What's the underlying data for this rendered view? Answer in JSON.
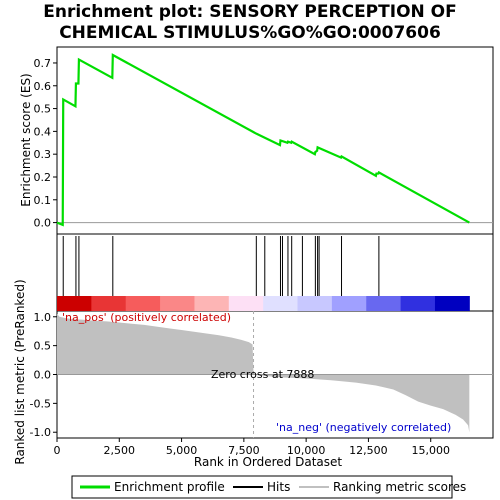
{
  "title_line1": "Enrichment plot: SENSORY PERCEPTION OF",
  "title_line2": "CHEMICAL STIMULUS%GO%GO:0007606",
  "colors": {
    "es_line": "#00dd00",
    "hits": "#000000",
    "metric_fill": "#c0c0c0",
    "pos_label": "#cc0000",
    "neg_label": "#0000cc"
  },
  "chart_data": [
    {
      "type": "line",
      "name": "enrichment-profile",
      "ylabel": "Enrichment score (ES)",
      "xlim": [
        0,
        17500
      ],
      "ylim": [
        -0.05,
        0.77
      ],
      "yticks": [
        0.0,
        0.1,
        0.2,
        0.3,
        0.4,
        0.5,
        0.6,
        0.7
      ],
      "ytick_labels": [
        "0.0",
        "0.1",
        "0.2",
        "0.3",
        "0.4",
        "0.5",
        "0.6",
        "0.7"
      ],
      "x": [
        0,
        230,
        250,
        740,
        760,
        860,
        880,
        2220,
        2240,
        8000,
        8950,
        8970,
        9250,
        9270,
        9400,
        9420,
        10350,
        10370,
        10440,
        10460,
        11400,
        11420,
        12800,
        12820,
        12900,
        12920,
        16550
      ],
      "y": [
        0.0,
        -0.01,
        0.54,
        0.51,
        0.61,
        0.61,
        0.715,
        0.635,
        0.735,
        0.39,
        0.34,
        0.36,
        0.35,
        0.355,
        0.35,
        0.355,
        0.3,
        0.31,
        0.315,
        0.33,
        0.285,
        0.29,
        0.205,
        0.215,
        0.215,
        0.22,
        0.0
      ]
    },
    {
      "type": "bar",
      "name": "hits",
      "x": [
        250,
        760,
        880,
        2240,
        8000,
        8340,
        8970,
        9050,
        9270,
        9420,
        9850,
        10370,
        10460,
        10520,
        11420,
        12920
      ]
    },
    {
      "type": "area",
      "name": "ranked-list-metric",
      "xlabel": "Rank in Ordered Dataset",
      "ylabel": "Ranked list metric (PreRanked)",
      "xlim": [
        0,
        17500
      ],
      "ylim": [
        -1.1,
        1.1
      ],
      "xticks": [
        0,
        2500,
        5000,
        7500,
        10000,
        12500,
        15000
      ],
      "xtick_labels": [
        "0",
        "2,500",
        "5,000",
        "7,500",
        "10,000",
        "12,500",
        "15,000"
      ],
      "yticks": [
        -1.0,
        -0.5,
        0.0,
        0.5,
        1.0
      ],
      "ytick_labels": [
        "-1.0",
        "-0.5",
        "0.0",
        "0.5",
        "1.0"
      ],
      "x": [
        0,
        100,
        300,
        600,
        1000,
        1500,
        2000,
        2500,
        3000,
        3500,
        4000,
        4500,
        5000,
        5500,
        6000,
        6500,
        7000,
        7400,
        7700,
        7850,
        7888,
        8200,
        9000,
        10000,
        11000,
        12000,
        12800,
        13500,
        14000,
        14500,
        15000,
        15500,
        16000,
        16300,
        16500,
        16550
      ],
      "y": [
        1.05,
        1.0,
        0.98,
        0.96,
        0.95,
        0.93,
        0.92,
        0.9,
        0.88,
        0.86,
        0.83,
        0.8,
        0.77,
        0.74,
        0.71,
        0.68,
        0.64,
        0.6,
        0.56,
        0.52,
        0.0,
        -0.02,
        -0.05,
        -0.07,
        -0.1,
        -0.14,
        -0.19,
        -0.26,
        -0.36,
        -0.47,
        -0.54,
        -0.6,
        -0.7,
        -0.78,
        -0.88,
        -1.0
      ]
    }
  ],
  "annotations": {
    "pos_label": "'na_pos' (positively correlated)",
    "neg_label": "'na_neg' (negatively correlated)",
    "zero_cross": "Zero cross at 7888",
    "zero_cross_rank": 7888
  },
  "heatmap_colors": [
    "#cc0000",
    "#e83535",
    "#f65c5c",
    "#fa8787",
    "#fdb5b5",
    "#fde0f5",
    "#e0e0ff",
    "#c8c8ff",
    "#a0a0ff",
    "#6868f0",
    "#3030e0",
    "#0000c0"
  ],
  "legend": {
    "items": [
      {
        "label": "Enrichment profile"
      },
      {
        "label": "Hits"
      },
      {
        "label": "Ranking metric scores"
      }
    ]
  }
}
